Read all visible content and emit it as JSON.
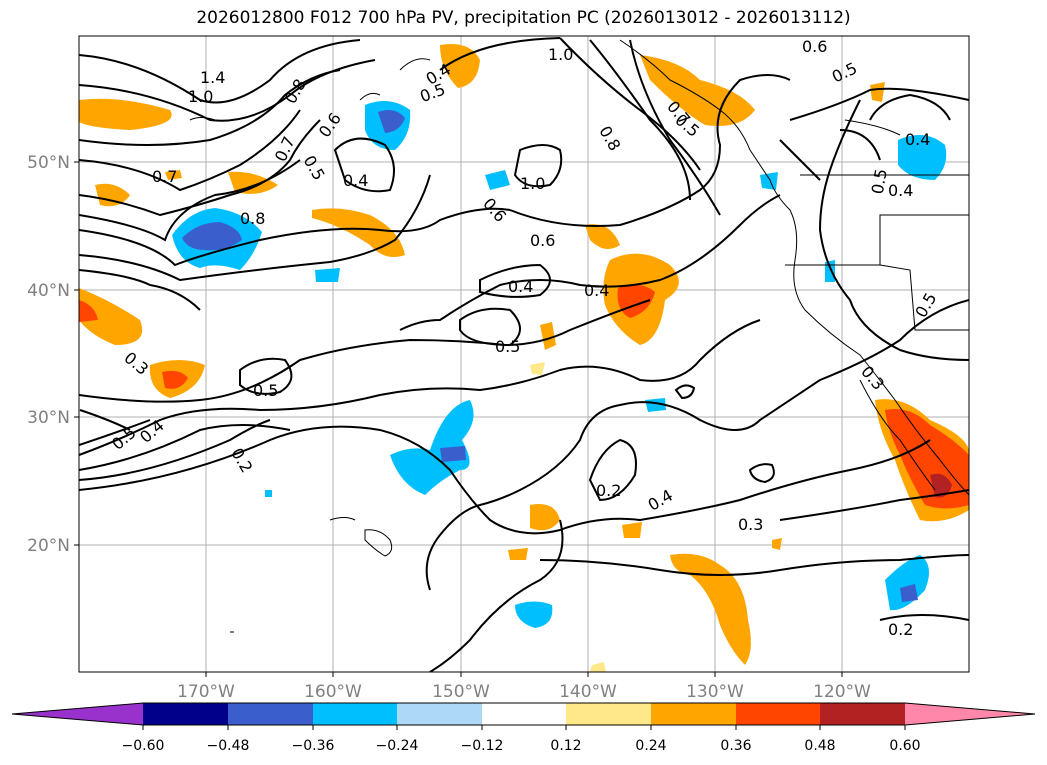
{
  "title": "2026012800 F012 700 hPa PV, precipitation PC (2026013012 - 2026013112)",
  "lon_ticks": [
    "170°W",
    "160°W",
    "150°W",
    "140°W",
    "130°W",
    "120°W"
  ],
  "lat_ticks": [
    "50°N",
    "40°N",
    "30°N",
    "20°N"
  ],
  "colorbar": {
    "labels": [
      "−0.60",
      "−0.48",
      "−0.36",
      "−0.24",
      "−0.12",
      "0.12",
      "0.24",
      "0.36",
      "0.48",
      "0.60"
    ],
    "colors": [
      "#9932cc",
      "#00008b",
      "#3a5fcd",
      "#00bfff",
      "#add8f6",
      "#ffffff",
      "#ffe88a",
      "#ffa500",
      "#ff4500",
      "#b22222",
      "#ff88aa"
    ]
  },
  "contour_labels": [
    "1.4",
    "1.0",
    "0.8",
    "0.7",
    "0.6",
    "0.5",
    "0.4",
    "0.4",
    "0.5",
    "1.0",
    "0.8",
    "0.6",
    "0.5",
    "0.4",
    "0.7",
    "0.7",
    "0.8",
    "0.6",
    "1.0",
    "0.4",
    "0.4",
    "0.5",
    "0.3",
    "0.5",
    "0.4",
    "0.5",
    "0.2",
    "0.2",
    "0.4",
    "0.3",
    "0.2",
    "0.5",
    "0.6",
    "0.5",
    "0.4",
    "0.5",
    "0.3"
  ]
}
